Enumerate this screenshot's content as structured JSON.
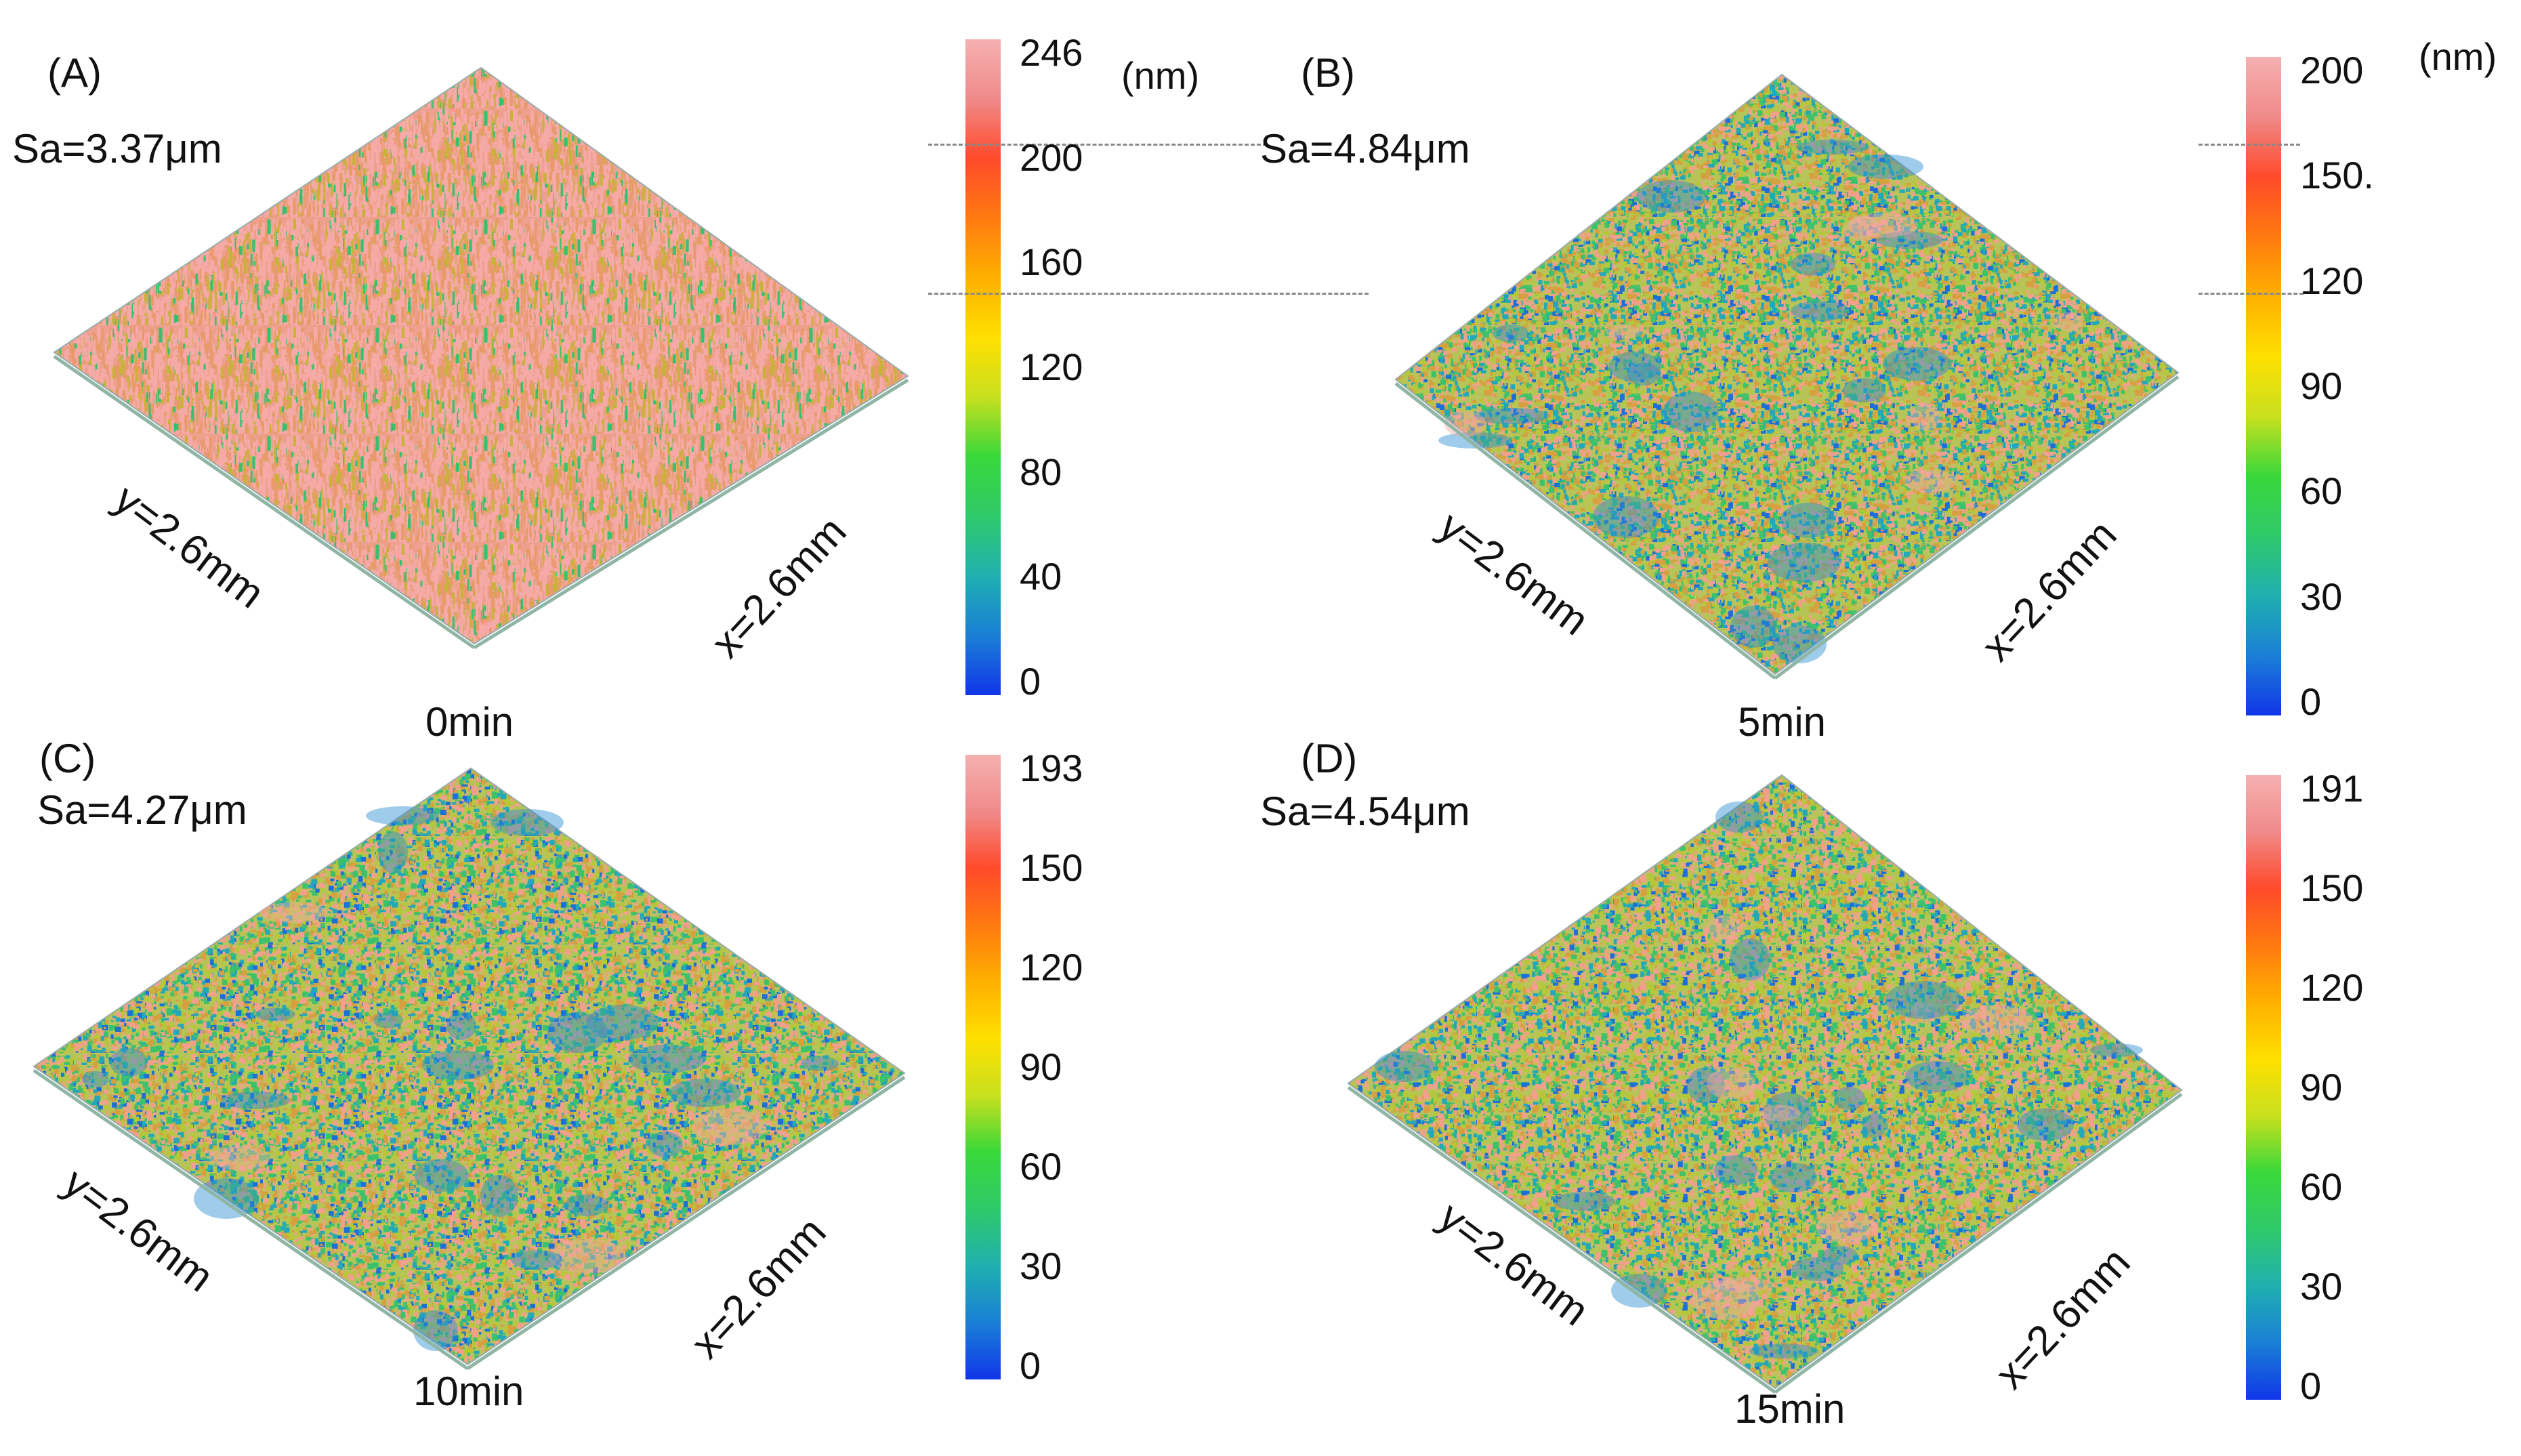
{
  "figure": {
    "panels": [
      {
        "id": "A",
        "label": "(A)",
        "sa": "Sa=3.37μm",
        "time": "0min",
        "x_label": "x=2.6mm",
        "y_label": "y=2.6mm",
        "unit": "(nm)",
        "ticks": [
          "246",
          "200",
          "160",
          "120",
          "80",
          "40",
          "0"
        ],
        "tick_values": [
          246,
          200,
          160,
          120,
          80,
          40,
          0
        ],
        "colorbar_max": 246,
        "dominant": "pink",
        "colors": {
          "low": "#1030e0",
          "mid": "#22cc33",
          "high": "#f4a6a6"
        }
      },
      {
        "id": "B",
        "label": "(B)",
        "sa": "Sa=4.84μm",
        "time": "5min",
        "x_label": "x=2.6mm",
        "y_label": "y=2.6mm",
        "unit": "(nm)",
        "ticks": [
          "200",
          "150.",
          "120",
          "90",
          "60",
          "30",
          "0"
        ],
        "tick_values": [
          200,
          150,
          120,
          90,
          60,
          30,
          0
        ],
        "colorbar_max": 200,
        "dominant": "mixed",
        "colors": {
          "low": "#1030e0",
          "mid": "#22cc33",
          "high": "#f4a6a6"
        }
      },
      {
        "id": "C",
        "label": "(C)",
        "sa": "Sa=4.27μm",
        "time": "10min",
        "x_label": "x=2.6mm",
        "y_label": "y=2.6mm",
        "unit": "",
        "ticks": [
          "193",
          "150",
          "120",
          "90",
          "60",
          "30",
          "0"
        ],
        "tick_values": [
          193,
          150,
          120,
          90,
          60,
          30,
          0
        ],
        "colorbar_max": 193,
        "dominant": "mixed",
        "colors": {
          "low": "#1030e0",
          "mid": "#22cc33",
          "high": "#f4a6a6"
        }
      },
      {
        "id": "D",
        "label": "(D)",
        "sa": "Sa=4.54μm",
        "time": "15min",
        "x_label": "x=2.6mm",
        "y_label": "y=2.6mm",
        "unit": "",
        "ticks": [
          "191",
          "150",
          "120",
          "90",
          "60",
          "30",
          "0"
        ],
        "tick_values": [
          191,
          150,
          120,
          90,
          60,
          30,
          0
        ],
        "colorbar_max": 191,
        "dominant": "mixed",
        "colors": {
          "low": "#1030e0",
          "mid": "#22cc33",
          "high": "#f4a6a6"
        }
      }
    ]
  }
}
